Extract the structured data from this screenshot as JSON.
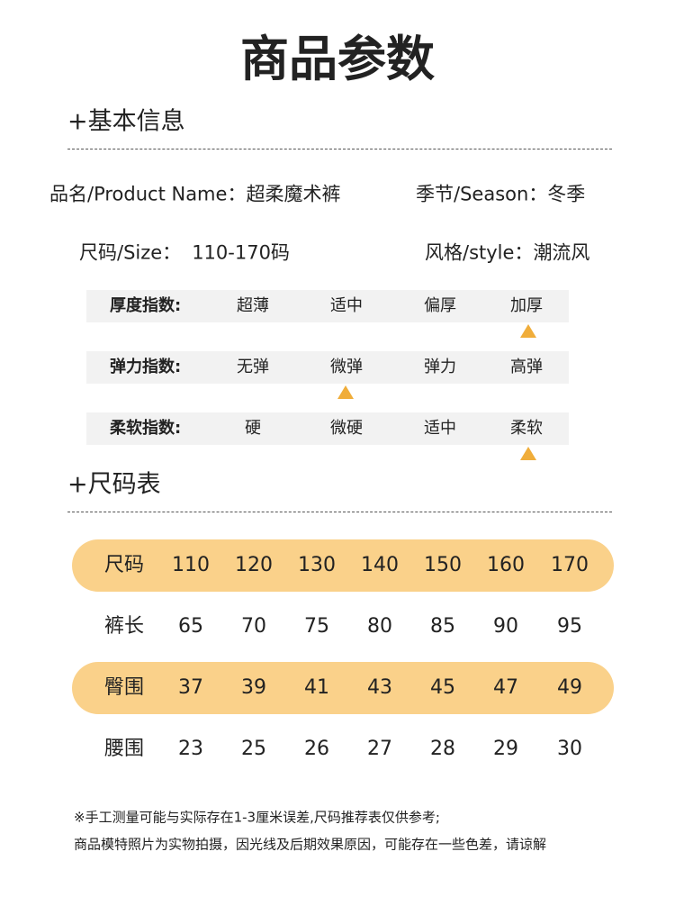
{
  "title": "商品参数",
  "basic_info": {
    "heading": "+基本信息",
    "fields": [
      {
        "label": "品名/Product Name：",
        "value": "超柔魔术裤"
      },
      {
        "label": "季节/Season：",
        "value": "冬季"
      },
      {
        "label": "尺码/Size：",
        "value": "110-170码"
      },
      {
        "label": "风格/style：",
        "value": "潮流风"
      }
    ]
  },
  "indices": [
    {
      "label": "厚度指数:",
      "options": [
        "超薄",
        "适中",
        "偏厚",
        "加厚"
      ]
    },
    {
      "label": "弹力指数:",
      "options": [
        "无弹",
        "微弹",
        "弹力",
        "高弹"
      ]
    },
    {
      "label": "柔软指数:",
      "options": [
        "硬",
        "微硬",
        "适中",
        "柔软"
      ]
    }
  ],
  "size_table": {
    "heading": "+尺码表",
    "rows": [
      {
        "label": "尺码",
        "values": [
          110,
          120,
          130,
          140,
          150,
          160,
          170
        ]
      },
      {
        "label": "裤长",
        "values": [
          65,
          70,
          75,
          80,
          85,
          90,
          95
        ]
      },
      {
        "label": "臀围",
        "values": [
          37,
          39,
          41,
          43,
          45,
          47,
          49
        ]
      },
      {
        "label": "腰围",
        "values": [
          23,
          25,
          26,
          27,
          28,
          29,
          30
        ]
      }
    ]
  },
  "notes": [
    "※手工测量可能与实际存在1-3厘米误差,尺码推荐表仅供参考;",
    "商品模特照片为实物拍摄，因光线及后期效果原因，可能存在一些色差，请谅解"
  ]
}
